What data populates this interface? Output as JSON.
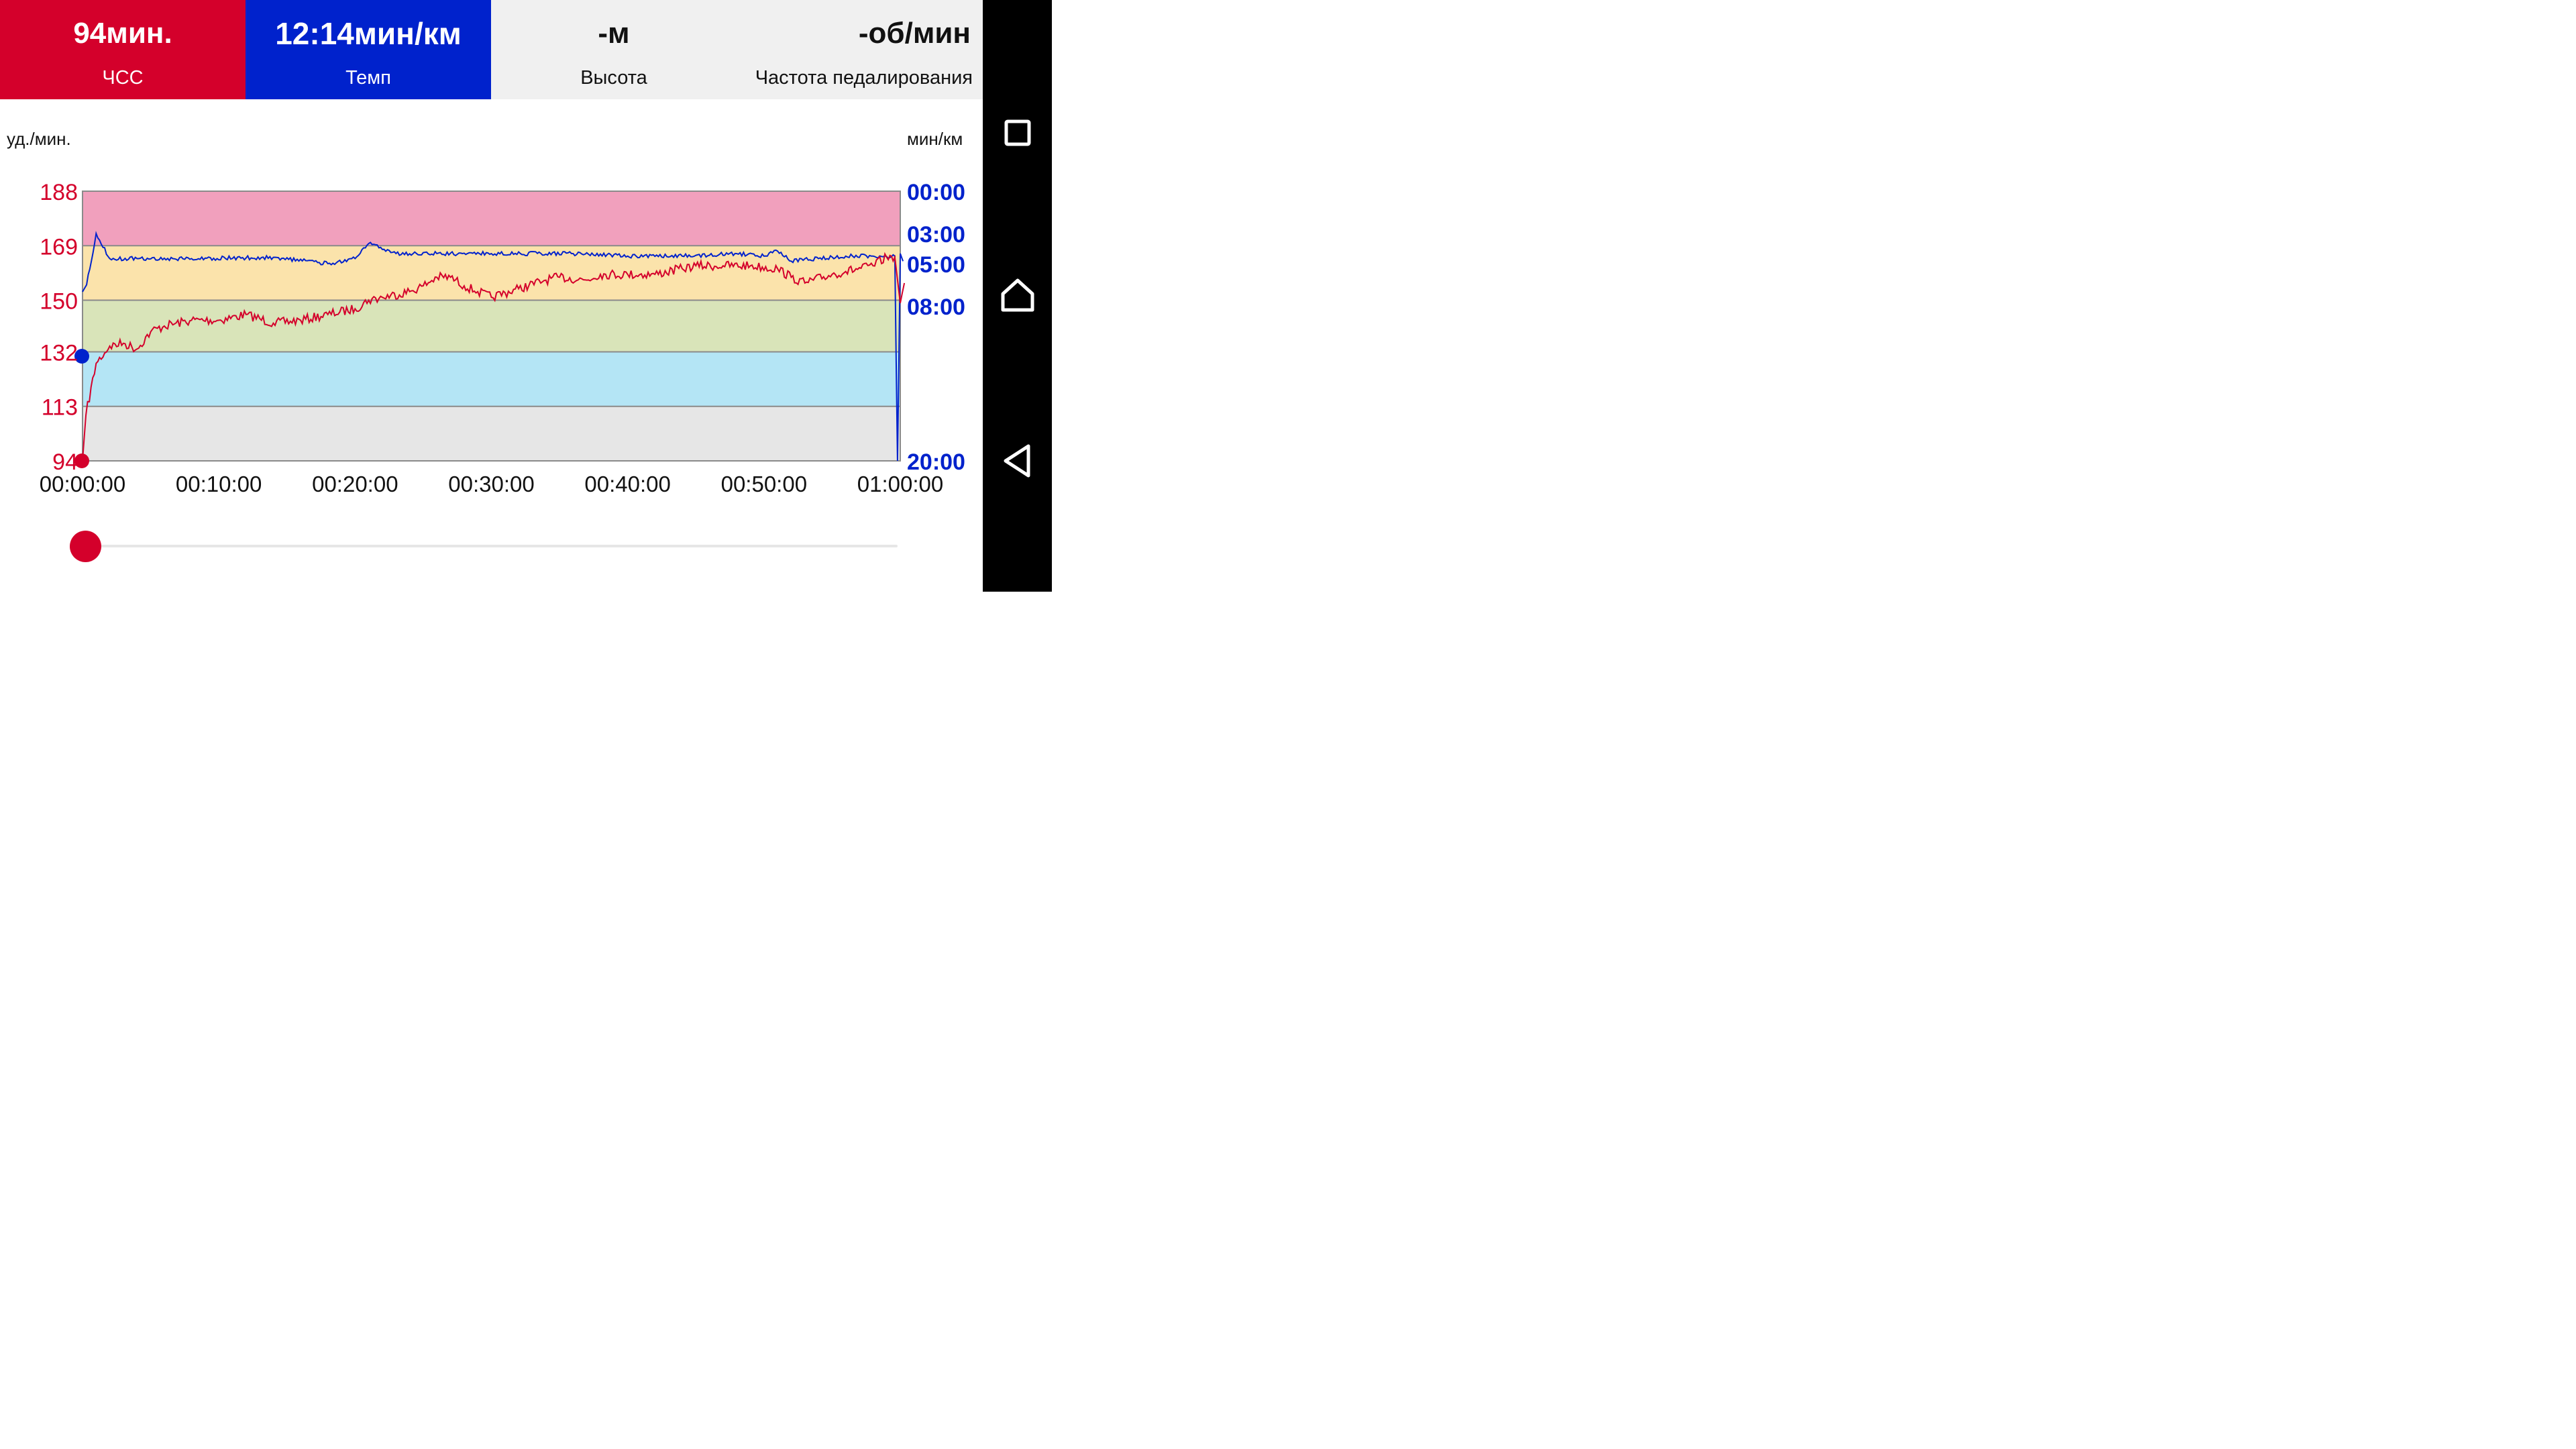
{
  "tiles": {
    "hr": {
      "value": "94мин.",
      "label": "ЧСС"
    },
    "pace": {
      "value": "12:14мин/км",
      "label": "Темп"
    },
    "altitude": {
      "value": "-м",
      "label": "Высота"
    },
    "cadence": {
      "value": "-об/мин",
      "label": "Частота педалирования"
    }
  },
  "chart": {
    "left_unit": "уд./мин.",
    "right_unit": "мин/км",
    "left_ticks": [
      "188",
      "169",
      "150",
      "132",
      "113",
      "94"
    ],
    "right_ticks": [
      "00:00",
      "03:00",
      "05:00",
      "08:00",
      "20:00"
    ],
    "x_ticks": [
      "00:00:00",
      "00:10:00",
      "00:20:00",
      "00:30:00",
      "00:40:00",
      "00:50:00",
      "01:00:00"
    ],
    "zone_colors": [
      "#f1a0bd",
      "#fbe3ab",
      "#d9e4b9",
      "#b4e5f5",
      "#e6e6e6"
    ],
    "hr_color": "#d4002b",
    "pace_color": "#0022cc"
  },
  "chart_data": {
    "type": "line",
    "x_unit": "time (h:mm:ss)",
    "left_axis": {
      "label": "уд./мин.",
      "range": [
        94,
        188
      ]
    },
    "right_axis": {
      "label": "мин/км",
      "ticks": [
        "00:00",
        "03:00",
        "05:00",
        "08:00",
        "20:00"
      ],
      "inverted": true
    },
    "series": [
      {
        "name": "ЧСС",
        "axis": "left",
        "points": [
          [
            0,
            94
          ],
          [
            0.25,
            110
          ],
          [
            1,
            128
          ],
          [
            2,
            134
          ],
          [
            3,
            135
          ],
          [
            4,
            133
          ],
          [
            5,
            139
          ],
          [
            6,
            141
          ],
          [
            8,
            143
          ],
          [
            10,
            143
          ],
          [
            12,
            145
          ],
          [
            14,
            142
          ],
          [
            16,
            143
          ],
          [
            18,
            145
          ],
          [
            20,
            147
          ],
          [
            21,
            150
          ],
          [
            22,
            151
          ],
          [
            24,
            153
          ],
          [
            25,
            155
          ],
          [
            26,
            158
          ],
          [
            27,
            158
          ],
          [
            28,
            155
          ],
          [
            29,
            153
          ],
          [
            30,
            151
          ],
          [
            32,
            154
          ],
          [
            34,
            157
          ],
          [
            35,
            158
          ],
          [
            37,
            157
          ],
          [
            38,
            159
          ],
          [
            40,
            159
          ],
          [
            42,
            159
          ],
          [
            44,
            161
          ],
          [
            45,
            162
          ],
          [
            47,
            162
          ],
          [
            49,
            162
          ],
          [
            51,
            161
          ],
          [
            52,
            158
          ],
          [
            53,
            156
          ],
          [
            55,
            159
          ],
          [
            56,
            160
          ],
          [
            58,
            162
          ],
          [
            59,
            165
          ],
          [
            59.6,
            165
          ],
          [
            60,
            149
          ],
          [
            60.3,
            156
          ]
        ]
      },
      {
        "name": "Темп",
        "axis": "right",
        "points": [
          [
            0,
            "07:00"
          ],
          [
            0.3,
            "06:30"
          ],
          [
            1,
            "03:00"
          ],
          [
            2,
            "04:40"
          ],
          [
            4,
            "04:40"
          ],
          [
            8,
            "04:40"
          ],
          [
            14,
            "04:35"
          ],
          [
            18,
            "05:00"
          ],
          [
            20,
            "04:40"
          ],
          [
            21,
            "03:40"
          ],
          [
            23,
            "04:20"
          ],
          [
            26,
            "04:20"
          ],
          [
            30,
            "04:20"
          ],
          [
            36,
            "04:20"
          ],
          [
            40,
            "04:30"
          ],
          [
            44,
            "04:30"
          ],
          [
            48,
            "04:20"
          ],
          [
            50,
            "04:30"
          ],
          [
            51,
            "04:10"
          ],
          [
            52,
            "04:50"
          ],
          [
            54,
            "04:40"
          ],
          [
            56,
            "04:30"
          ],
          [
            58,
            "04:30"
          ],
          [
            59.6,
            "04:30"
          ],
          [
            59.8,
            "20:00"
          ],
          [
            60,
            "04:20"
          ],
          [
            60.2,
            "04:50"
          ]
        ]
      }
    ]
  },
  "slider": {
    "position_fraction": 0.0
  },
  "navbar": {
    "icons": [
      "recents-icon",
      "home-icon",
      "back-icon"
    ]
  }
}
